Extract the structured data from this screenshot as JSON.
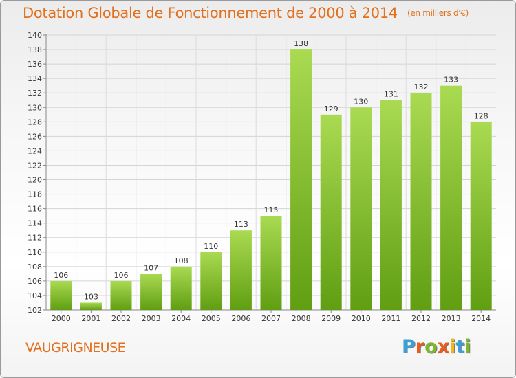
{
  "title": "Dotation Globale de Fonctionnement de 2000 à 2014",
  "unit": "(en milliers d'€)",
  "commune": "VAUGRIGNEUSE",
  "logo": {
    "letters": [
      "P",
      "r",
      "o",
      "x",
      "i",
      "t",
      "i"
    ],
    "colors": [
      "#3aa0d8",
      "#e85c1e",
      "#7cb92c",
      "#e85c1e",
      "#f2b51c",
      "#3aa0d8",
      "#7cb92c"
    ]
  },
  "colors": {
    "accent": "#e2701d",
    "bar_light": "#a5d64f",
    "bar_dark": "#62a014"
  },
  "chart_data": {
    "type": "bar",
    "categories": [
      "2000",
      "2001",
      "2002",
      "2003",
      "2004",
      "2005",
      "2006",
      "2007",
      "2008",
      "2009",
      "2010",
      "2011",
      "2012",
      "2013",
      "2014"
    ],
    "values": [
      106,
      103,
      106,
      107,
      108,
      110,
      113,
      115,
      138,
      129,
      130,
      131,
      132,
      133,
      128
    ],
    "ylim": [
      102,
      140
    ],
    "yticks": [
      102,
      104,
      106,
      108,
      110,
      112,
      114,
      116,
      118,
      120,
      122,
      124,
      126,
      128,
      130,
      132,
      134,
      136,
      138,
      140
    ],
    "grid": true
  }
}
